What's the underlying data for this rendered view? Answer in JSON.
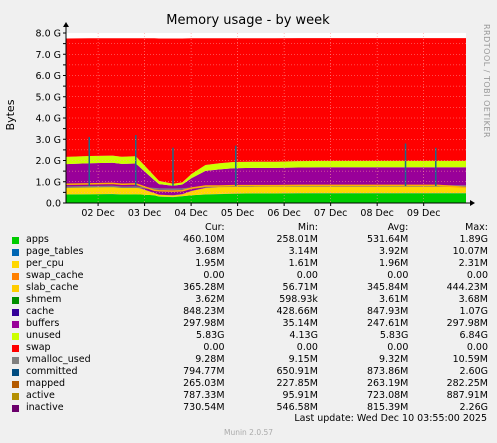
{
  "chart_data": {
    "type": "area",
    "title": "Memory usage - by week",
    "ylabel": "Bytes",
    "watermark": "RRDTOOL / TOBI OETIKER",
    "ylim": [
      0,
      8.0
    ],
    "yticks": [
      "0.0",
      "0.5 G",
      "1.0 G",
      "1.5 G",
      "2.0 G",
      "2.5 G",
      "3.0 G",
      "3.5 G",
      "4.0 G",
      "4.5 G",
      "5.0 G",
      "5.5 G",
      "6.0 G",
      "6.5 G",
      "7.0 G",
      "7.5 G",
      "8.0 G"
    ],
    "ytick_values": [
      0,
      0.5,
      1.0,
      1.5,
      2.0,
      2.5,
      3.0,
      3.5,
      4.0,
      4.5,
      5.0,
      5.5,
      6.0,
      6.5,
      7.0,
      7.5,
      8.0
    ],
    "xticks": [
      "02 Dec",
      "03 Dec",
      "04 Dec",
      "05 Dec",
      "06 Dec",
      "07 Dec",
      "08 Dec",
      "09 Dec"
    ],
    "xtick_values": [
      0.69,
      1.69,
      2.69,
      3.69,
      4.69,
      5.69,
      6.69,
      7.69
    ],
    "xlim": [
      0,
      8.6
    ],
    "grid": true,
    "x": [
      0,
      0.5,
      1.0,
      1.2,
      1.5,
      1.9,
      2.0,
      2.3,
      2.5,
      2.7,
      3.0,
      3.3,
      3.6,
      4.0,
      4.5,
      5.0,
      5.5,
      6.0,
      6.5,
      7.0,
      7.5,
      8.0,
      8.6
    ],
    "series": [
      {
        "name": "apps",
        "color": "#00cc00",
        "values": [
          0.4,
          0.41,
          0.42,
          0.4,
          0.41,
          0.36,
          0.3,
          0.28,
          0.32,
          0.36,
          0.4,
          0.42,
          0.44,
          0.45,
          0.45,
          0.46,
          0.46,
          0.46,
          0.46,
          0.46,
          0.46,
          0.46,
          0.46
        ]
      },
      {
        "name": "page_tables",
        "color": "#0066b3",
        "values": [
          0.004,
          0.004,
          0.004,
          0.004,
          0.004,
          0.004,
          0.004,
          0.004,
          0.004,
          0.004,
          0.004,
          0.004,
          0.004,
          0.004,
          0.004,
          0.004,
          0.004,
          0.004,
          0.004,
          0.004,
          0.004,
          0.004,
          0.004
        ]
      },
      {
        "name": "per_cpu",
        "color": "#ff8000",
        "values": [
          0.002,
          0.002,
          0.002,
          0.002,
          0.002,
          0.002,
          0.002,
          0.002,
          0.002,
          0.002,
          0.002,
          0.002,
          0.002,
          0.002,
          0.002,
          0.002,
          0.002,
          0.002,
          0.002,
          0.002,
          0.002,
          0.002,
          0.002
        ]
      },
      {
        "name": "swap_cache",
        "color": "#ffcc00",
        "values": [
          0,
          0,
          0,
          0,
          0,
          0,
          0,
          0,
          0,
          0,
          0,
          0,
          0,
          0,
          0,
          0,
          0,
          0,
          0,
          0,
          0,
          0,
          0
        ]
      },
      {
        "name": "slab_cache",
        "color": "#ffd700",
        "values": [
          0.32,
          0.33,
          0.34,
          0.33,
          0.34,
          0.1,
          0.08,
          0.07,
          0.09,
          0.2,
          0.3,
          0.33,
          0.35,
          0.35,
          0.35,
          0.36,
          0.36,
          0.36,
          0.36,
          0.36,
          0.36,
          0.36,
          0.36
        ]
      },
      {
        "name": "shmem",
        "color": "#330099",
        "values": [
          0.004,
          0.004,
          0.004,
          0.004,
          0.004,
          0.004,
          0.004,
          0.004,
          0.004,
          0.004,
          0.004,
          0.004,
          0.004,
          0.004,
          0.004,
          0.004,
          0.004,
          0.004,
          0.004,
          0.004,
          0.004,
          0.004,
          0.004
        ]
      },
      {
        "name": "cache",
        "color": "#990099",
        "values": [
          1.1,
          1.12,
          1.12,
          1.1,
          1.1,
          0.6,
          0.5,
          0.45,
          0.45,
          0.6,
          0.8,
          0.82,
          0.84,
          0.84,
          0.84,
          0.84,
          0.85,
          0.85,
          0.85,
          0.85,
          0.85,
          0.85,
          0.85
        ]
      },
      {
        "name": "buffers",
        "color": "#ccff00",
        "values": [
          0.34,
          0.34,
          0.34,
          0.34,
          0.34,
          0.2,
          0.15,
          0.1,
          0.1,
          0.2,
          0.28,
          0.29,
          0.29,
          0.29,
          0.29,
          0.3,
          0.3,
          0.3,
          0.3,
          0.3,
          0.3,
          0.3,
          0.3
        ]
      },
      {
        "name": "unused",
        "color": "#ff0000",
        "values": [
          5.57,
          5.54,
          5.52,
          5.57,
          5.55,
          6.48,
          6.7,
          6.83,
          6.77,
          6.38,
          5.96,
          5.88,
          5.82,
          5.81,
          5.81,
          5.79,
          5.78,
          5.78,
          5.78,
          5.78,
          5.78,
          5.78,
          5.78
        ]
      }
    ],
    "lines": [
      {
        "name": "committed",
        "color": "#808080",
        "values": [
          0.75,
          0.76,
          0.78,
          0.74,
          0.75,
          0.68,
          0.66,
          0.65,
          0.66,
          0.7,
          0.76,
          0.78,
          0.79,
          0.79,
          0.8,
          0.8,
          0.8,
          0.8,
          0.8,
          0.8,
          0.8,
          0.8,
          0.79
        ]
      },
      {
        "name": "inactive",
        "color": "#ffb000",
        "values": [
          0.88,
          0.9,
          0.92,
          0.88,
          0.9,
          0.6,
          0.58,
          0.56,
          0.58,
          0.7,
          0.8,
          0.8,
          0.82,
          0.82,
          0.82,
          0.83,
          0.83,
          0.83,
          0.83,
          0.83,
          0.83,
          0.83,
          0.73
        ]
      }
    ],
    "spikes_x": [
      0.5,
      1.5,
      2.3,
      3.65,
      7.3,
      7.95
    ],
    "spikes_y": [
      3.1,
      3.2,
      2.6,
      2.7,
      2.8,
      2.6
    ]
  },
  "legend": {
    "headers": {
      "cur": "Cur:",
      "min": "Min:",
      "avg": "Avg:",
      "max": "Max:"
    },
    "rows": [
      {
        "name": "apps",
        "color": "#00cc00",
        "cur": "460.10M",
        "min": "258.01M",
        "avg": "531.64M",
        "max": "1.89G"
      },
      {
        "name": "page_tables",
        "color": "#0066b3",
        "cur": "3.68M",
        "min": "3.14M",
        "avg": "3.92M",
        "max": "10.07M"
      },
      {
        "name": "per_cpu",
        "color": "#ffd700",
        "cur": "1.95M",
        "min": "1.61M",
        "avg": "1.96M",
        "max": "2.31M"
      },
      {
        "name": "swap_cache",
        "color": "#ff8000",
        "cur": "0.00",
        "min": "0.00",
        "avg": "0.00",
        "max": "0.00"
      },
      {
        "name": "slab_cache",
        "color": "#ffcc00",
        "cur": "365.28M",
        "min": "56.71M",
        "avg": "345.84M",
        "max": "444.23M"
      },
      {
        "name": "shmem",
        "color": "#008f00",
        "cur": "3.62M",
        "min": "598.93k",
        "avg": "3.61M",
        "max": "3.68M"
      },
      {
        "name": "cache",
        "color": "#330099",
        "cur": "848.23M",
        "min": "428.66M",
        "avg": "847.93M",
        "max": "1.07G"
      },
      {
        "name": "buffers",
        "color": "#990099",
        "cur": "297.98M",
        "min": "35.14M",
        "avg": "247.61M",
        "max": "297.98M"
      },
      {
        "name": "unused",
        "color": "#ccff00",
        "cur": "5.83G",
        "min": "4.13G",
        "avg": "5.83G",
        "max": "6.84G"
      },
      {
        "name": "swap",
        "color": "#ff0000",
        "cur": "0.00",
        "min": "0.00",
        "avg": "0.00",
        "max": "0.00"
      },
      {
        "name": "vmalloc_used",
        "color": "#808080",
        "cur": "9.28M",
        "min": "9.15M",
        "avg": "9.32M",
        "max": "10.59M"
      },
      {
        "name": "committed",
        "color": "#004c80",
        "cur": "794.77M",
        "min": "650.91M",
        "avg": "873.86M",
        "max": "2.60G"
      },
      {
        "name": "mapped",
        "color": "#b35a00",
        "cur": "265.03M",
        "min": "227.85M",
        "avg": "263.19M",
        "max": "282.25M"
      },
      {
        "name": "active",
        "color": "#b38f00",
        "cur": "787.33M",
        "min": "95.91M",
        "avg": "723.08M",
        "max": "887.91M"
      },
      {
        "name": "inactive",
        "color": "#6b006b",
        "cur": "730.54M",
        "min": "546.58M",
        "avg": "815.39M",
        "max": "2.26G"
      }
    ]
  },
  "footer": {
    "last_update": "Last update:  Wed Dec 10 03:55:00 2025",
    "version": "Munin 2.0.57"
  }
}
